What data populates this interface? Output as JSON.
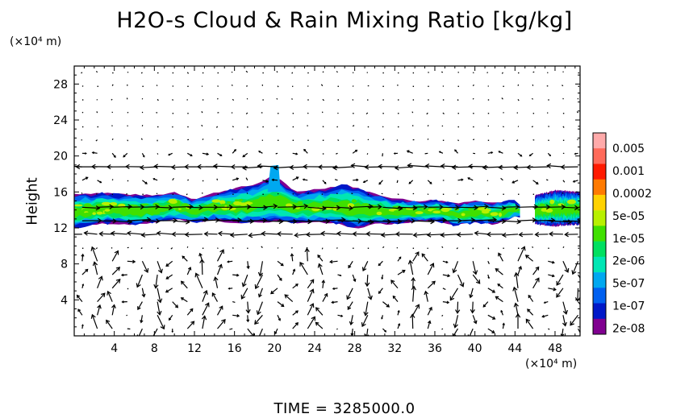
{
  "chart_data": {
    "type": "heatmap",
    "title": "H2O-s Cloud & Rain Mixing Ratio [kg/kg]",
    "ylabel": "Height",
    "x_unit_label": "(×10⁴ m)",
    "y_unit_label": "(×10⁴ m)",
    "x_ticks": [
      4,
      8,
      12,
      16,
      20,
      24,
      28,
      32,
      36,
      40,
      44,
      48
    ],
    "y_ticks": [
      4,
      8,
      12,
      16,
      20,
      24,
      28
    ],
    "xlim": [
      0,
      50.5
    ],
    "ylim": [
      0,
      30
    ],
    "colorbar": {
      "labels": [
        "0.005",
        "0.001",
        "0.0002",
        "5e-05",
        "1e-05",
        "2e-06",
        "5e-07",
        "1e-07",
        "2e-08"
      ],
      "colors": [
        "#ffaaaa",
        "#ff6a5a",
        "#ff1a00",
        "#ff7a00",
        "#ffd200",
        "#b8f000",
        "#40e000",
        "#00e060",
        "#00e6b4",
        "#00a8f0",
        "#0060f0",
        "#0018c8",
        "#800090"
      ]
    },
    "cloud_band": {
      "top": [
        [
          0,
          15.8
        ],
        [
          3,
          15.9
        ],
        [
          6,
          15.7
        ],
        [
          8,
          15.6
        ],
        [
          10,
          16.0
        ],
        [
          12,
          15.2
        ],
        [
          14,
          15.9
        ],
        [
          16,
          16.4
        ],
        [
          18,
          16.8
        ],
        [
          19.5,
          17.6
        ],
        [
          20.5,
          17.4
        ],
        [
          22,
          16.0
        ],
        [
          24,
          16.3
        ],
        [
          26,
          16.6
        ],
        [
          27,
          16.9
        ],
        [
          28,
          16.5
        ],
        [
          30,
          15.8
        ],
        [
          32,
          15.3
        ],
        [
          34,
          15.0
        ],
        [
          36,
          15.1
        ],
        [
          38,
          14.8
        ],
        [
          40,
          15.0
        ],
        [
          42,
          14.9
        ],
        [
          44,
          15.0
        ],
        [
          45,
          14.0
        ],
        [
          46,
          15.6
        ],
        [
          48,
          16.2
        ],
        [
          50.5,
          16.0
        ]
      ],
      "bottom": [
        [
          0,
          12.0
        ],
        [
          3,
          12.5
        ],
        [
          6,
          12.4
        ],
        [
          8,
          12.6
        ],
        [
          10,
          13.0
        ],
        [
          12,
          12.6
        ],
        [
          14,
          12.9
        ],
        [
          16,
          12.5
        ],
        [
          18,
          12.6
        ],
        [
          20,
          12.7
        ],
        [
          22,
          12.6
        ],
        [
          24,
          12.6
        ],
        [
          26,
          12.5
        ],
        [
          28,
          11.9
        ],
        [
          30,
          12.4
        ],
        [
          32,
          12.5
        ],
        [
          34,
          12.7
        ],
        [
          36,
          12.9
        ],
        [
          38,
          12.3
        ],
        [
          40,
          12.6
        ],
        [
          42,
          12.4
        ],
        [
          44,
          13.2
        ],
        [
          45,
          13.5
        ],
        [
          46,
          12.4
        ],
        [
          48,
          12.2
        ],
        [
          50.5,
          12.4
        ]
      ],
      "gap": [
        44.5,
        46.0
      ]
    },
    "wind_field": {
      "x_spacing": 1.5,
      "y_spacing": 1.5,
      "jet_heights": [
        19,
        15,
        13.5,
        11.3
      ]
    }
  },
  "time_label": "TIME  =  3285000.0"
}
